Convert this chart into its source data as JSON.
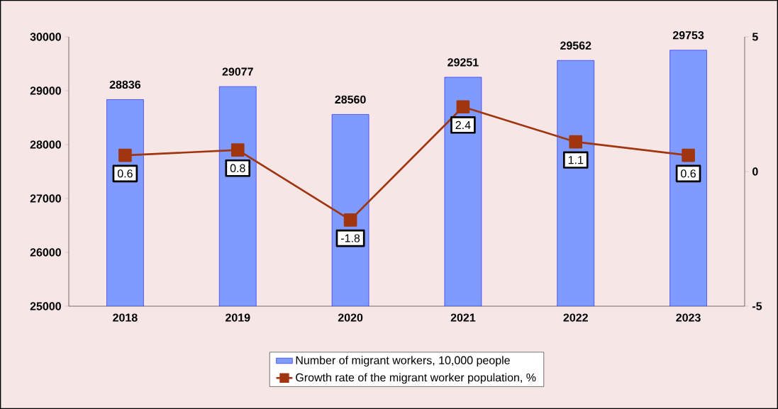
{
  "chart_data": {
    "type": "bar",
    "categories": [
      "2018",
      "2019",
      "2020",
      "2021",
      "2022",
      "2023"
    ],
    "series": [
      {
        "name": "Number of migrant workers, 10,000 people",
        "color": "#7f9bff",
        "values": [
          28836,
          29077,
          28560,
          29251,
          29562,
          29753
        ]
      },
      {
        "name": "Growth rate of the migrant worker population, %",
        "type": "line",
        "axis": "y2",
        "color": "#a0350f",
        "values": [
          0.6,
          0.8,
          -1.8,
          2.4,
          1.1,
          0.6
        ]
      }
    ],
    "ylim": [
      25000,
      30000
    ],
    "yticks": [
      25000,
      26000,
      27000,
      28000,
      29000,
      30000
    ],
    "y2lim": [
      -5,
      5
    ],
    "y2ticks": [
      -5,
      0,
      5
    ],
    "data_labels": true,
    "legend": "bottom",
    "marker": "square",
    "line_style": "solid",
    "grid": false
  }
}
